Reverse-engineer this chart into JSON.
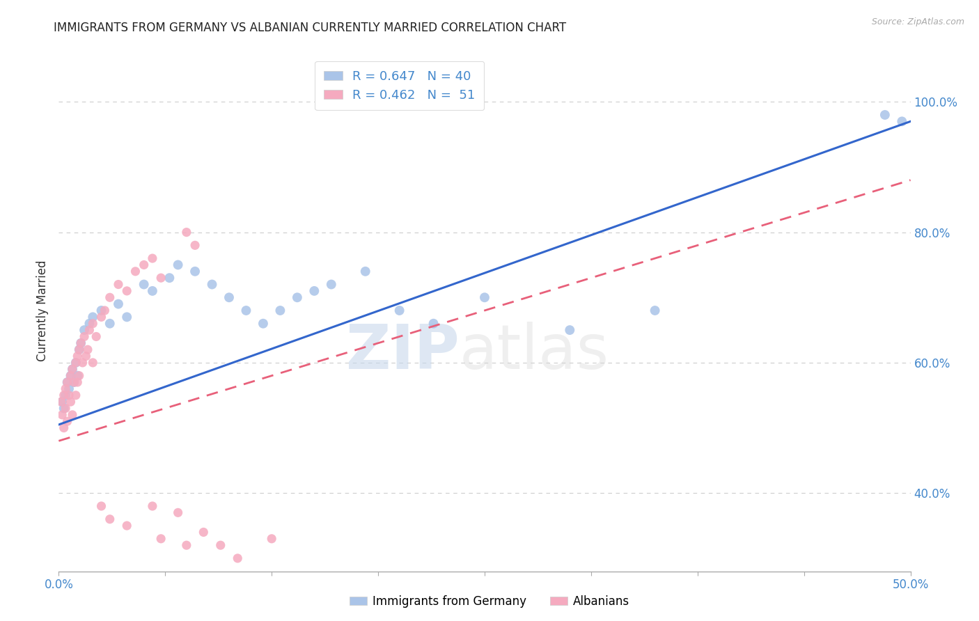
{
  "title": "IMMIGRANTS FROM GERMANY VS ALBANIAN CURRENTLY MARRIED CORRELATION CHART",
  "source": "Source: ZipAtlas.com",
  "ylabel": "Currently Married",
  "blue_R": 0.647,
  "blue_N": 40,
  "pink_R": 0.462,
  "pink_N": 51,
  "blue_color": "#aac4e8",
  "pink_color": "#f5aabf",
  "blue_line_color": "#3366cc",
  "pink_line_color": "#e8607a",
  "watermark_zip": "ZIP",
  "watermark_atlas": "atlas",
  "legend_label_blue": "Immigrants from Germany",
  "legend_label_pink": "Albanians",
  "xlim": [
    0,
    50
  ],
  "ylim": [
    28,
    108
  ],
  "right_yticks": [
    40,
    60,
    80,
    100
  ],
  "right_yticklabels": [
    "40.0%",
    "60.0%",
    "80.0%",
    "100.0%"
  ],
  "blue_line_x0": 0,
  "blue_line_y0": 50.5,
  "blue_line_x1": 50,
  "blue_line_y1": 97.0,
  "pink_line_x0": 0,
  "pink_line_y0": 48.0,
  "pink_line_x1": 50,
  "pink_line_y1": 88.0,
  "blue_x": [
    0.2,
    0.3,
    0.4,
    0.5,
    0.6,
    0.7,
    0.8,
    0.9,
    1.0,
    1.1,
    1.2,
    1.3,
    1.5,
    1.8,
    2.0,
    2.5,
    3.0,
    3.5,
    4.0,
    5.0,
    5.5,
    6.5,
    7.0,
    8.0,
    9.0,
    10.0,
    11.0,
    12.0,
    13.0,
    14.0,
    15.0,
    16.0,
    18.0,
    20.0,
    22.0,
    25.0,
    30.0,
    35.0,
    48.5,
    49.5
  ],
  "blue_y": [
    54,
    53,
    55,
    57,
    56,
    58,
    59,
    57,
    60,
    58,
    62,
    63,
    65,
    66,
    67,
    68,
    66,
    69,
    67,
    72,
    71,
    73,
    75,
    74,
    72,
    70,
    68,
    66,
    68,
    70,
    71,
    72,
    74,
    68,
    66,
    70,
    65,
    68,
    98,
    97
  ],
  "pink_x": [
    0.15,
    0.2,
    0.3,
    0.3,
    0.4,
    0.4,
    0.5,
    0.5,
    0.6,
    0.7,
    0.7,
    0.8,
    0.8,
    0.9,
    1.0,
    1.0,
    1.1,
    1.1,
    1.2,
    1.2,
    1.3,
    1.4,
    1.5,
    1.6,
    1.7,
    1.8,
    2.0,
    2.0,
    2.2,
    2.5,
    2.7,
    3.0,
    3.5,
    4.0,
    4.5,
    5.0,
    5.5,
    6.0,
    7.5,
    8.0,
    2.5,
    3.0,
    4.0,
    5.5,
    6.0,
    7.0,
    7.5,
    8.5,
    9.5,
    10.5,
    12.5
  ],
  "pink_y": [
    54,
    52,
    55,
    50,
    56,
    53,
    57,
    51,
    55,
    58,
    54,
    59,
    52,
    57,
    60,
    55,
    61,
    57,
    62,
    58,
    63,
    60,
    64,
    61,
    62,
    65,
    66,
    60,
    64,
    67,
    68,
    70,
    72,
    71,
    74,
    75,
    76,
    73,
    80,
    78,
    38,
    36,
    35,
    38,
    33,
    37,
    32,
    34,
    32,
    30,
    33
  ]
}
